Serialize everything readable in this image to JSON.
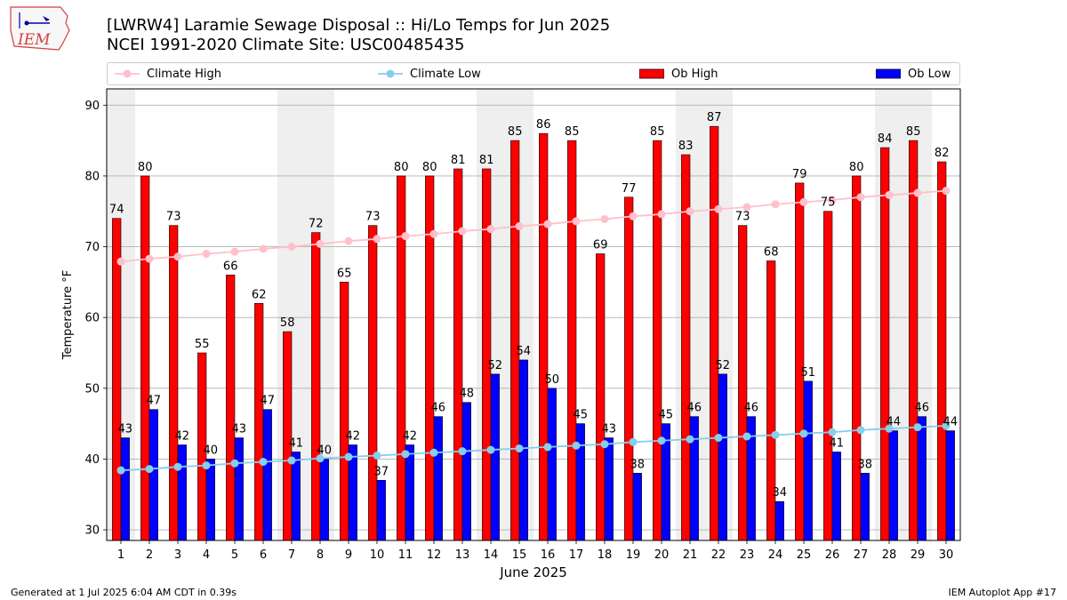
{
  "title_line1": "[LWRW4] Laramie Sewage Disposal :: Hi/Lo Temps for Jun 2025",
  "title_line2": "NCEI 1991-2020 Climate Site: USC00485435",
  "footer_left": "Generated at 1 Jul 2025 6:04 AM CDT in 0.39s",
  "footer_right": "IEM Autoplot App #17",
  "logo_text": "IEM",
  "colors": {
    "ob_high": "#ff0000",
    "ob_low": "#0000ff",
    "climate_high": "#ffc0cb",
    "climate_low": "#87ceeb",
    "weekend_band": "#efefef",
    "grid": "#b0b0b0"
  },
  "legend": [
    {
      "label": "Climate High",
      "kind": "line",
      "color": "#ffc0cb"
    },
    {
      "label": "Climate Low",
      "kind": "line",
      "color": "#87ceeb"
    },
    {
      "label": "Ob High",
      "kind": "bar",
      "color": "#ff0000"
    },
    {
      "label": "Ob Low",
      "kind": "bar",
      "color": "#0000ff"
    }
  ],
  "chart_data": {
    "type": "bar",
    "title": "[LWRW4] Laramie Sewage Disposal :: Hi/Lo Temps for Jun 2025",
    "xlabel": "June 2025",
    "ylabel": "Temperature °F",
    "ylim": [
      28.5,
      92.3
    ],
    "yticks": [
      30,
      40,
      50,
      60,
      70,
      80,
      90
    ],
    "categories": [
      "1",
      "2",
      "3",
      "4",
      "5",
      "6",
      "7",
      "8",
      "9",
      "10",
      "11",
      "12",
      "13",
      "14",
      "15",
      "16",
      "17",
      "18",
      "19",
      "20",
      "21",
      "22",
      "23",
      "24",
      "25",
      "26",
      "27",
      "28",
      "29",
      "30"
    ],
    "shaded_days": [
      1,
      7,
      8,
      14,
      15,
      21,
      22,
      28,
      29
    ],
    "series": [
      {
        "name": "Ob High",
        "kind": "bar",
        "values": [
          74,
          80,
          73,
          55,
          66,
          62,
          58,
          72,
          65,
          73,
          80,
          80,
          81,
          81,
          85,
          86,
          85,
          69,
          77,
          85,
          83,
          87,
          73,
          68,
          79,
          75,
          80,
          84,
          85,
          82
        ]
      },
      {
        "name": "Ob Low",
        "kind": "bar",
        "values": [
          43,
          47,
          42,
          40,
          43,
          47,
          41,
          40,
          42,
          37,
          42,
          46,
          48,
          52,
          54,
          50,
          45,
          43,
          38,
          45,
          46,
          52,
          46,
          34,
          51,
          41,
          38,
          44,
          46,
          44
        ]
      },
      {
        "name": "Climate High",
        "kind": "line",
        "values": [
          67.9,
          68.3,
          68.6,
          69.0,
          69.3,
          69.7,
          70.0,
          70.4,
          70.8,
          71.1,
          71.5,
          71.8,
          72.2,
          72.5,
          72.9,
          73.2,
          73.6,
          73.9,
          74.3,
          74.6,
          75.0,
          75.3,
          75.6,
          76.0,
          76.3,
          76.6,
          77.0,
          77.3,
          77.6,
          77.9
        ]
      },
      {
        "name": "Climate Low",
        "kind": "line",
        "values": [
          38.4,
          38.6,
          38.9,
          39.1,
          39.4,
          39.6,
          39.8,
          40.1,
          40.3,
          40.5,
          40.7,
          40.9,
          41.1,
          41.3,
          41.5,
          41.7,
          41.9,
          42.1,
          42.4,
          42.6,
          42.8,
          43.0,
          43.2,
          43.4,
          43.6,
          43.8,
          44.1,
          44.3,
          44.5,
          44.7
        ]
      }
    ]
  }
}
